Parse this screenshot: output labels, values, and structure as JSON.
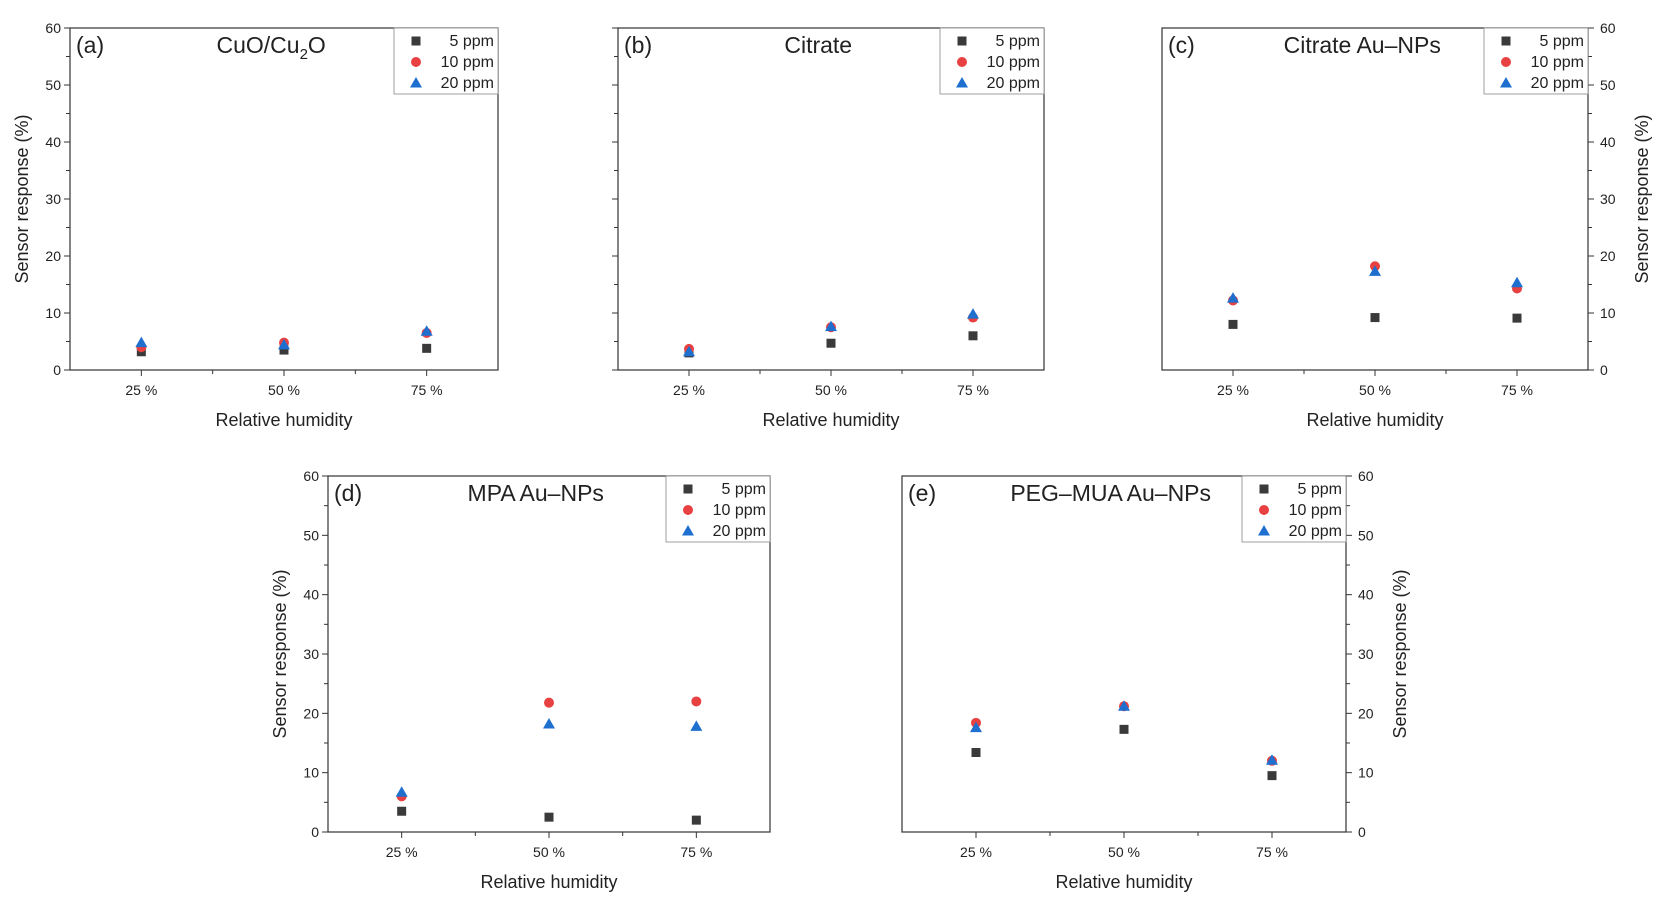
{
  "figure": {
    "colors": {
      "5 ppm": "#3a3a3a",
      "10 ppm": "#e84141",
      "20 ppm": "#1f6fcf"
    },
    "markers": {
      "5 ppm": "square",
      "10 ppm": "circle",
      "20 ppm": "triangle"
    }
  },
  "chart_data": [
    {
      "panel": "(a)",
      "title": "CuO/Cu2O",
      "title_main": "CuO/Cu",
      "title_sub": "2",
      "title_tail": "O",
      "type": "scatter",
      "xlabel": "Relative humidity",
      "ylabel": "Sensor response (%)",
      "categories": [
        "25 %",
        "50 %",
        "75 %"
      ],
      "ylim": [
        0,
        60
      ],
      "yticks": [
        "0",
        "10",
        "20",
        "30",
        "40",
        "50",
        "60"
      ],
      "y_axis_side": "left",
      "legend_position": "top-right",
      "series": [
        {
          "name": "5 ppm",
          "values": [
            3.2,
            3.5,
            3.8
          ]
        },
        {
          "name": "10 ppm",
          "values": [
            4.0,
            4.8,
            6.5
          ]
        },
        {
          "name": "20 ppm",
          "values": [
            4.8,
            4.4,
            6.8
          ]
        }
      ]
    },
    {
      "panel": "(b)",
      "title": "Citrate",
      "type": "scatter",
      "xlabel": "Relative humidity",
      "ylabel": "",
      "categories": [
        "25 %",
        "50 %",
        "75 %"
      ],
      "ylim": [
        0,
        60
      ],
      "yticks": [],
      "y_axis_side": "none",
      "legend_position": "top-right",
      "series": [
        {
          "name": "5 ppm",
          "values": [
            3.0,
            4.7,
            6.0
          ]
        },
        {
          "name": "10 ppm",
          "values": [
            3.7,
            7.5,
            9.2
          ]
        },
        {
          "name": "20 ppm",
          "values": [
            3.2,
            7.6,
            9.8
          ]
        }
      ]
    },
    {
      "panel": "(c)",
      "title": "Citrate Au–NPs",
      "type": "scatter",
      "xlabel": "Relative humidity",
      "ylabel": "Sensor response (%)",
      "categories": [
        "25 %",
        "50 %",
        "75 %"
      ],
      "ylim": [
        0,
        60
      ],
      "yticks": [
        "0",
        "10",
        "20",
        "30",
        "40",
        "50",
        "60"
      ],
      "y_axis_side": "right",
      "legend_position": "top-right",
      "series": [
        {
          "name": "5 ppm",
          "values": [
            8.0,
            9.2,
            9.1
          ]
        },
        {
          "name": "10 ppm",
          "values": [
            12.2,
            18.2,
            14.3
          ]
        },
        {
          "name": "20 ppm",
          "values": [
            12.6,
            17.3,
            15.3
          ]
        }
      ]
    },
    {
      "panel": "(d)",
      "title": "MPA Au–NPs",
      "type": "scatter",
      "xlabel": "Relative humidity",
      "ylabel": "Sensor response (%)",
      "categories": [
        "25 %",
        "50 %",
        "75 %"
      ],
      "ylim": [
        0,
        60
      ],
      "yticks": [
        "0",
        "10",
        "20",
        "30",
        "40",
        "50",
        "60"
      ],
      "y_axis_side": "left",
      "legend_position": "top-right",
      "series": [
        {
          "name": "5 ppm",
          "values": [
            3.5,
            2.5,
            2.0
          ]
        },
        {
          "name": "10 ppm",
          "values": [
            6.0,
            21.8,
            22.0
          ]
        },
        {
          "name": "20 ppm",
          "values": [
            6.7,
            18.2,
            17.8
          ]
        }
      ]
    },
    {
      "panel": "(e)",
      "title": "PEG–MUA Au–NPs",
      "type": "scatter",
      "xlabel": "Relative humidity",
      "ylabel": "Sensor response (%)",
      "categories": [
        "25 %",
        "50 %",
        "75 %"
      ],
      "ylim": [
        0,
        60
      ],
      "yticks": [
        "0",
        "10",
        "20",
        "30",
        "40",
        "50",
        "60"
      ],
      "y_axis_side": "right",
      "legend_position": "top-right",
      "series": [
        {
          "name": "5 ppm",
          "values": [
            13.4,
            17.3,
            9.5
          ]
        },
        {
          "name": "10 ppm",
          "values": [
            18.4,
            21.2,
            12.0
          ]
        },
        {
          "name": "20 ppm",
          "values": [
            17.6,
            21.2,
            12.1
          ]
        }
      ]
    }
  ]
}
